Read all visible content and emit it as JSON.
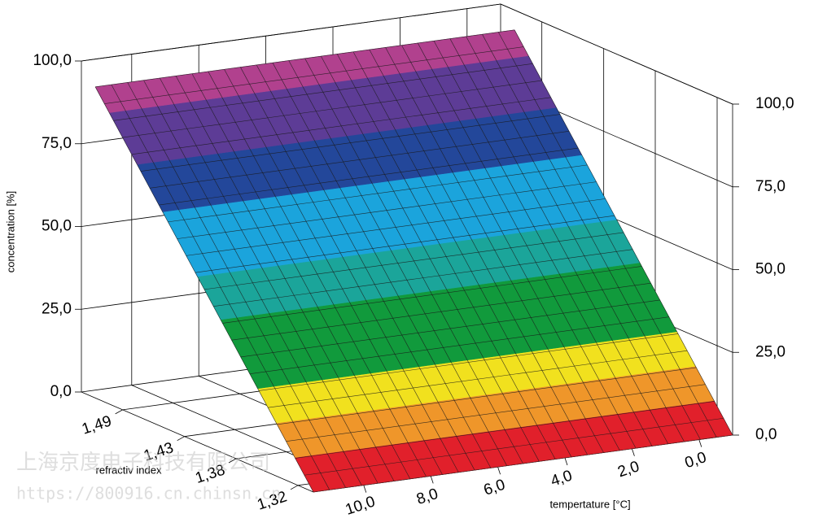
{
  "chart_data": {
    "type": "surface3d",
    "z_label": "concentration [%]",
    "r_label": "refractiv index",
    "t_label": "tempertature [°C]",
    "zlim": [
      0,
      100
    ],
    "zticks": [
      {
        "value": 0,
        "label": "0,0"
      },
      {
        "value": 25,
        "label": "25,0"
      },
      {
        "value": 50,
        "label": "50,0"
      },
      {
        "value": 75,
        "label": "75,0"
      },
      {
        "value": 100,
        "label": "100,0"
      }
    ],
    "rlim": [
      1.305,
      1.53
    ],
    "rticks": [
      {
        "value": 1.32,
        "label": "1,32"
      },
      {
        "value": 1.38,
        "label": "1,38"
      },
      {
        "value": 1.43,
        "label": "1,43"
      },
      {
        "value": 1.49,
        "label": "1,49"
      }
    ],
    "tlim": [
      11.5,
      -1
    ],
    "tticks": [
      {
        "value": 10,
        "label": "10,0"
      },
      {
        "value": 8,
        "label": "8,0"
      },
      {
        "value": 6,
        "label": "6,0"
      },
      {
        "value": 4,
        "label": "4,0"
      },
      {
        "value": 2,
        "label": "2,0"
      },
      {
        "value": 0,
        "label": "0,0"
      }
    ],
    "surface": {
      "levels": [
        0,
        8,
        16,
        24,
        40,
        50,
        65,
        76,
        88,
        94
      ],
      "colors": [
        "#e1202b",
        "#ef962a",
        "#f1e11e",
        "#119a3c",
        "#1ba59a",
        "#1ba4dc",
        "#23479a",
        "#5d3c96",
        "#b1418e"
      ]
    }
  },
  "watermark": [
    "上海京度电子科技有限公司",
    "https://800916.cn.chinsn.cn"
  ]
}
